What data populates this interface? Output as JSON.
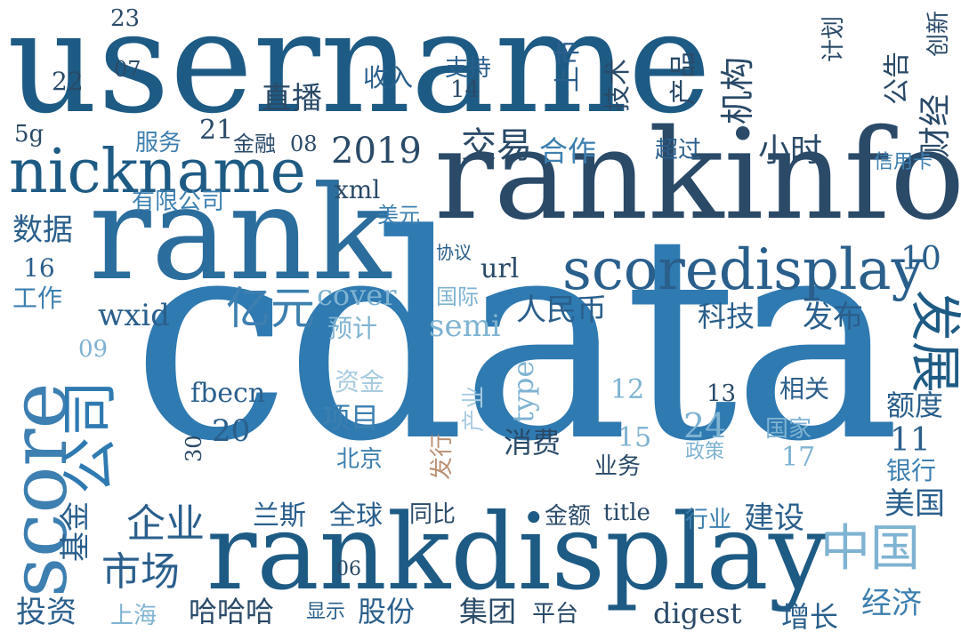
{
  "palette": {
    "deep": "#1e5b84",
    "dark": "#2a4a68",
    "mid": "#3d7fb0",
    "light": "#7fb3d2",
    "pale": "#a9cbe0",
    "brown": "#b99072"
  },
  "words": {
    "username": "username",
    "cdata": "cdata",
    "rankinfo": "rankinfo",
    "rank": "rank",
    "rankdisplay": "rankdisplay",
    "nickname": "nickname",
    "score": "score",
    "scoredisplay": "scoredisplay",
    "gongsi": "公司",
    "zhongguo": "中国",
    "yiyuan": "亿元",
    "fazhan": "发展",
    "shichang": "市场",
    "qiye": "企业",
    "y2019": "2019",
    "jiaoyi": "交易",
    "hezuo": "合作",
    "xiaoshi": "小时",
    "zhibo": "直播",
    "shuru": "收入",
    "zhichi": "支持",
    "shangshi": "上市",
    "jishu": "技术",
    "chanpin": "产品",
    "jigou": "机构",
    "jihua": "计划",
    "chuangxin": "创新",
    "gonggao": "公告",
    "caijing": "财经",
    "xinyongka": "信用卡",
    "chaoguo": "超过",
    "fuwu": "服务",
    "jinrong": "金融",
    "youxian": "有限公司",
    "shuju": "数据",
    "gongzuo": "工作",
    "meiyuan": "美元",
    "xieyi": "协议",
    "guoji": "国际",
    "yuji": "预计",
    "renminbi": "人民币",
    "keji": "科技",
    "fabu": "发布",
    "zijin": "资金",
    "xiangmu": "项目",
    "beijing": "北京",
    "faxing": "发行",
    "chanye": "产业",
    "xiaofei": "消费",
    "yewu": "业务",
    "xiangguan": "相关",
    "guojia": "国家",
    "zhengce": "政策",
    "edu": "额度",
    "yinhang": "银行",
    "meiguo": "美国",
    "jijin": "基金",
    "lansi": "兰斯",
    "quanqiu": "全球",
    "tongbi": "同比",
    "jine": "金额",
    "hangye": "行业",
    "jianshe": "建设",
    "touzi": "投资",
    "shanghai": "上海",
    "hahaha": "哈哈哈",
    "xianshi": "显示",
    "gufen": "股份",
    "jituan": "集团",
    "pingtai": "平台",
    "zengzhang": "增长",
    "jingji": "经济",
    "xml": "xml",
    "url": "url",
    "cover": "cover",
    "semi": "semi",
    "wxid": "wxid",
    "type": "type",
    "fbecn": "fbecn",
    "title": "title",
    "digest": "digest",
    "n5g": "5g",
    "n23": "23",
    "n22": "22",
    "n07": "07",
    "n14": "14",
    "n21": "21",
    "n08": "08",
    "n16": "16",
    "n10": "10",
    "n09": "09",
    "n12": "12",
    "n13": "13",
    "n20": "20",
    "n30": "30",
    "n15": "15",
    "n24": "24",
    "n17": "17",
    "n11": "11",
    "n06": "06"
  }
}
